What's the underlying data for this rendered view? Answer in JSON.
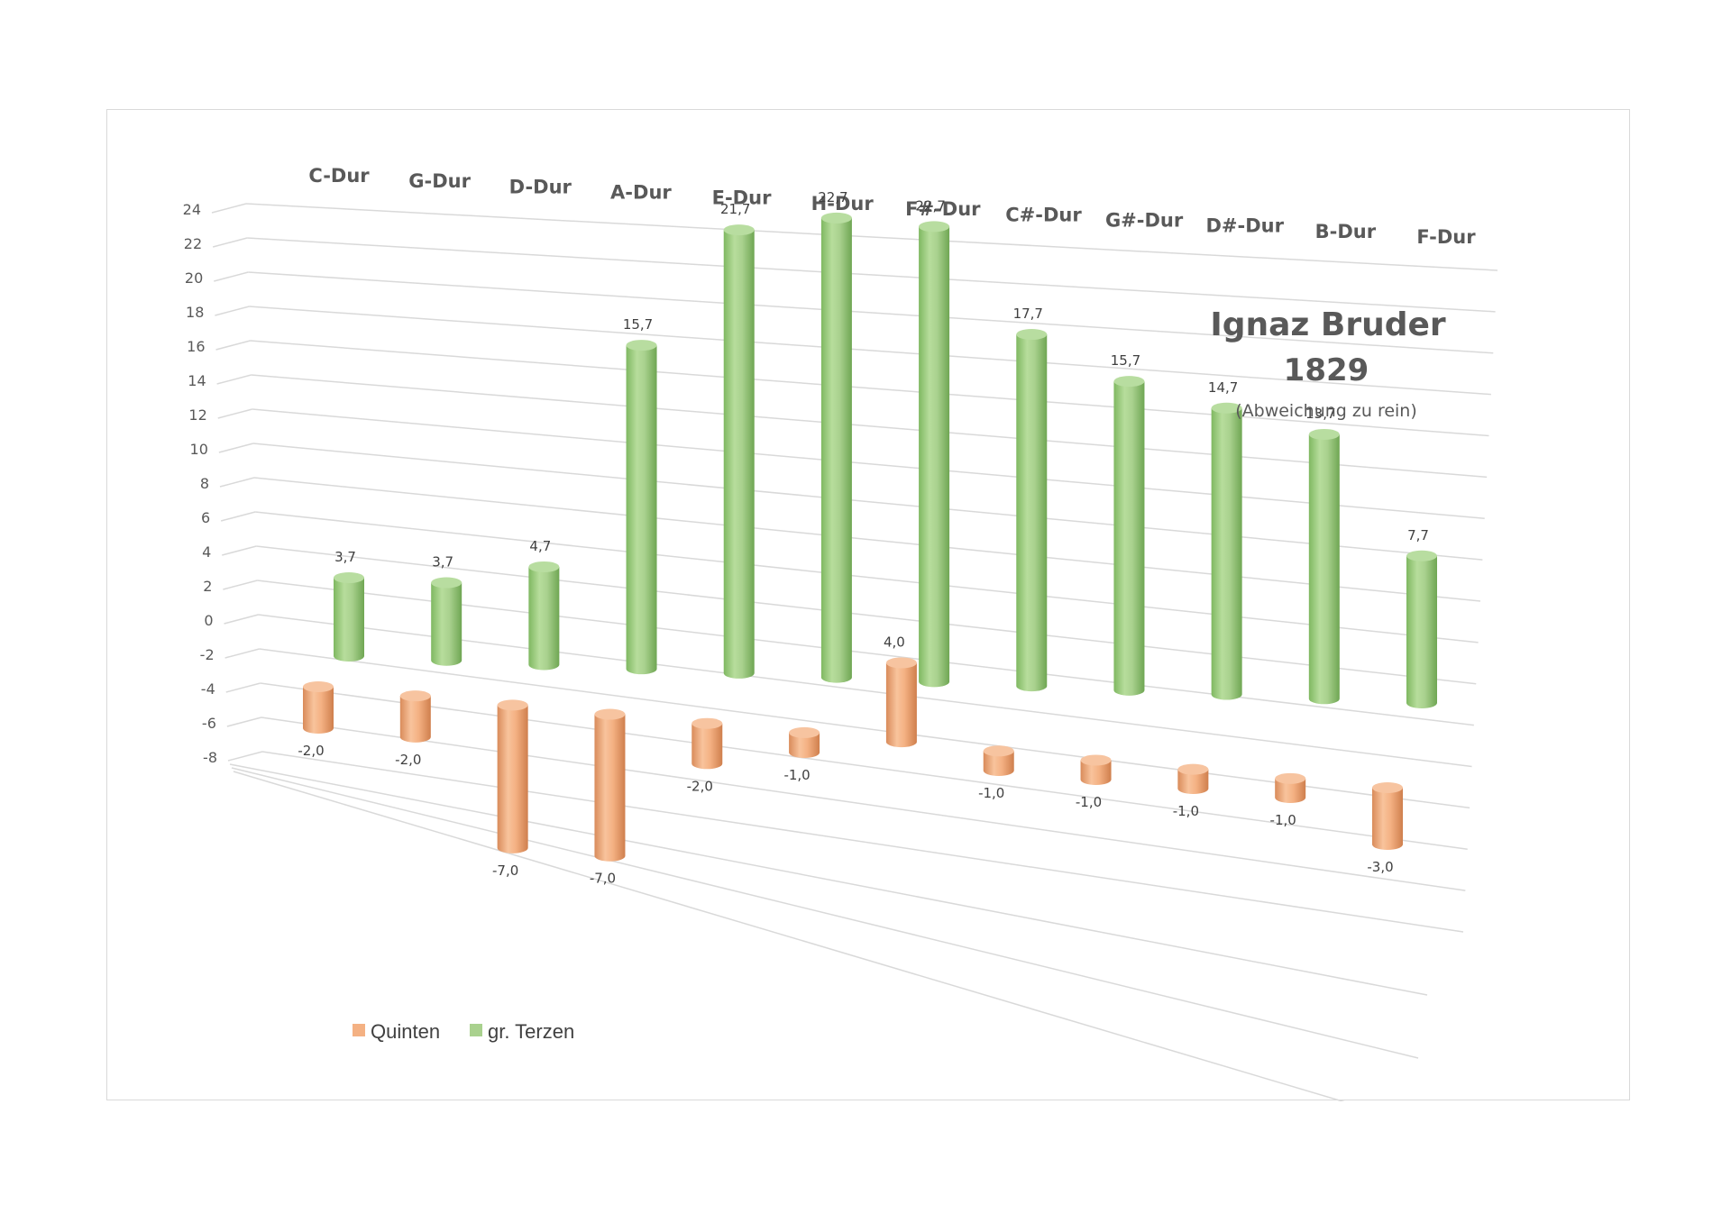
{
  "chart_data": {
    "type": "bar",
    "style": "3d-cylinder",
    "title": "Ignaz Bruder",
    "subtitle_year": "1829",
    "subtitle_note": "(Abweichung zu rein)",
    "categories": [
      "C-Dur",
      "G-Dur",
      "D-Dur",
      "A-Dur",
      "E-Dur",
      "H-Dur",
      "F#-Dur",
      "C#-Dur",
      "G#-Dur",
      "D#-Dur",
      "B-Dur",
      "F-Dur"
    ],
    "series": [
      {
        "name": "Quinten",
        "color": "#f4b183",
        "values": [
          -2.0,
          -2.0,
          -7.0,
          -7.0,
          -2.0,
          -1.0,
          4.0,
          -1.0,
          -1.0,
          -1.0,
          -1.0,
          -3.0
        ],
        "labels": [
          "-2,0",
          "-2,0",
          "-7,0",
          "-7,0",
          "-2,0",
          "-1,0",
          "4,0",
          "-1,0",
          "-1,0",
          "-1,0",
          "-1,0",
          "-3,0"
        ]
      },
      {
        "name": "gr. Terzen",
        "color": "#a9d18e",
        "values": [
          3.7,
          3.7,
          4.7,
          15.7,
          21.7,
          22.7,
          22.7,
          17.7,
          15.7,
          14.7,
          13.7,
          7.7
        ],
        "labels": [
          "3,7",
          "3,7",
          "4,7",
          "15,7",
          "21,7",
          "22,7",
          "22,7",
          "17,7",
          "15,7",
          "14,7",
          "13,7",
          "7,7"
        ]
      }
    ],
    "y_ticks": [
      "24",
      "22",
      "20",
      "18",
      "16",
      "14",
      "12",
      "10",
      "8",
      "6",
      "4",
      "2",
      "0",
      "-2",
      "-4",
      "-6",
      "-8"
    ],
    "ylim": [
      -8,
      24
    ],
    "grid": true,
    "legend_position": "bottom-left"
  }
}
